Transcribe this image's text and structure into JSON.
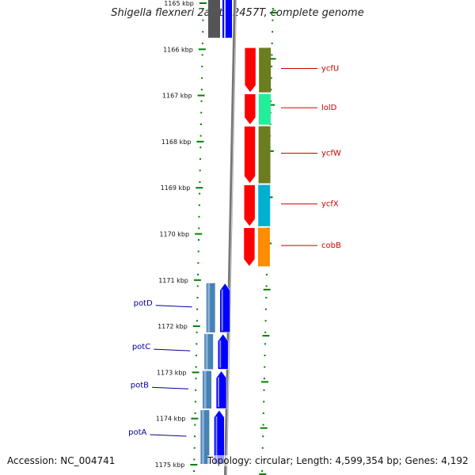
{
  "title": "Shigella flexneri 2a str. 2457T, complete genome",
  "footer": {
    "accession": "Accession: NC_004741",
    "summary": "Topology: circular; Length: 4,599,354 bp; Genes: 4,192"
  },
  "scale": {
    "unit": "kbp",
    "ticks": [
      "1165 kbp",
      "1166 kbp",
      "1167 kbp",
      "1168 kbp",
      "1169 kbp",
      "1170 kbp",
      "1171 kbp",
      "1172 kbp",
      "1173 kbp",
      "1174 kbp",
      "1175 kbp"
    ]
  },
  "colors": {
    "forward_cds": "#ff0000",
    "reverse_cds": "#0000ff",
    "forward_label": "#cc0000",
    "reverse_label": "#000099",
    "tick_dots": "#008000",
    "backbone": "#888888"
  },
  "genes": [
    {
      "name": "ycfU",
      "strand": "forward",
      "start_kbp": 1165.95,
      "end_kbp": 1166.95,
      "cog_color": "#6b7d1e"
    },
    {
      "name": "lolD",
      "strand": "forward",
      "start_kbp": 1166.95,
      "end_kbp": 1167.65,
      "cog_color": "#22ee99"
    },
    {
      "name": "ycfW",
      "strand": "forward",
      "start_kbp": 1167.65,
      "end_kbp": 1168.92,
      "cog_color": "#6b7d1e"
    },
    {
      "name": "ycfX",
      "strand": "forward",
      "start_kbp": 1168.92,
      "end_kbp": 1169.85,
      "cog_color": "#00b0d0"
    },
    {
      "name": "cobB",
      "strand": "forward",
      "start_kbp": 1169.85,
      "end_kbp": 1170.72,
      "cog_color": "#ff8c00"
    },
    {
      "name": "potD",
      "strand": "reverse",
      "start_kbp": 1171.05,
      "end_kbp": 1172.15,
      "cog_color": "#4682b4"
    },
    {
      "name": "potC",
      "strand": "reverse",
      "start_kbp": 1172.15,
      "end_kbp": 1172.95,
      "cog_color": "#4682b4"
    },
    {
      "name": "potB",
      "strand": "reverse",
      "start_kbp": 1172.95,
      "end_kbp": 1173.8,
      "cog_color": "#4682b4"
    },
    {
      "name": "potA",
      "strand": "reverse",
      "start_kbp": 1173.8,
      "end_kbp": 1175.0,
      "cog_color": "#4682b4"
    }
  ],
  "partial_top": [
    {
      "strand": "reverse",
      "start_kbp": 1164.7,
      "end_kbp": 1165.75,
      "fill": "#0000ff",
      "cog_color": "#555555"
    }
  ]
}
